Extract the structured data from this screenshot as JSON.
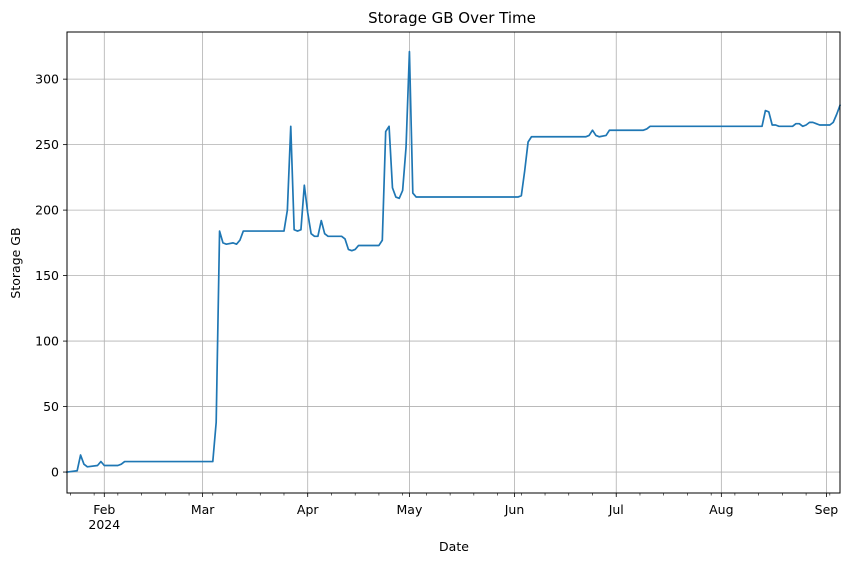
{
  "chart_data": {
    "type": "line",
    "title": "Storage GB Over Time",
    "xlabel": "Date",
    "ylabel": "Storage GB",
    "x_axis": {
      "type": "date",
      "range": [
        "2024-01-21",
        "2024-09-05"
      ],
      "major_ticks": [
        {
          "date": "2024-02-01",
          "label": "Feb",
          "sublabel": "2024"
        },
        {
          "date": "2024-03-01",
          "label": "Mar"
        },
        {
          "date": "2024-04-01",
          "label": "Apr"
        },
        {
          "date": "2024-05-01",
          "label": "May"
        },
        {
          "date": "2024-06-01",
          "label": "Jun"
        },
        {
          "date": "2024-07-01",
          "label": "Jul"
        },
        {
          "date": "2024-08-01",
          "label": "Aug"
        },
        {
          "date": "2024-09-01",
          "label": "Sep"
        }
      ],
      "minor_ticks": "weekly"
    },
    "y_axis": {
      "range": [
        -16,
        336
      ],
      "ticks": [
        0,
        50,
        100,
        150,
        200,
        250,
        300
      ]
    },
    "grid": true,
    "legend": "none",
    "series": [
      {
        "color": "#1f77b4",
        "points": [
          [
            "2024-01-21",
            0
          ],
          [
            "2024-01-24",
            1
          ],
          [
            "2024-01-25",
            13
          ],
          [
            "2024-01-26",
            6
          ],
          [
            "2024-01-27",
            4
          ],
          [
            "2024-01-30",
            5
          ],
          [
            "2024-01-31",
            8
          ],
          [
            "2024-02-01",
            5
          ],
          [
            "2024-02-05",
            5
          ],
          [
            "2024-02-06",
            6
          ],
          [
            "2024-02-07",
            8
          ],
          [
            "2024-02-08",
            8
          ],
          [
            "2024-03-04",
            8
          ],
          [
            "2024-03-05",
            38
          ],
          [
            "2024-03-06",
            184
          ],
          [
            "2024-03-07",
            175
          ],
          [
            "2024-03-08",
            174
          ],
          [
            "2024-03-10",
            175
          ],
          [
            "2024-03-11",
            174
          ],
          [
            "2024-03-12",
            177
          ],
          [
            "2024-03-13",
            184
          ],
          [
            "2024-03-25",
            184
          ],
          [
            "2024-03-26",
            200
          ],
          [
            "2024-03-27",
            264
          ],
          [
            "2024-03-28",
            185
          ],
          [
            "2024-03-29",
            184
          ],
          [
            "2024-03-30",
            185
          ],
          [
            "2024-03-31",
            219
          ],
          [
            "2024-04-01",
            198
          ],
          [
            "2024-04-02",
            182
          ],
          [
            "2024-04-03",
            180
          ],
          [
            "2024-04-04",
            180
          ],
          [
            "2024-04-05",
            192
          ],
          [
            "2024-04-06",
            182
          ],
          [
            "2024-04-07",
            180
          ],
          [
            "2024-04-11",
            180
          ],
          [
            "2024-04-12",
            178
          ],
          [
            "2024-04-13",
            170
          ],
          [
            "2024-04-14",
            169
          ],
          [
            "2024-04-15",
            170
          ],
          [
            "2024-04-16",
            173
          ],
          [
            "2024-04-22",
            173
          ],
          [
            "2024-04-23",
            177
          ],
          [
            "2024-04-24",
            260
          ],
          [
            "2024-04-25",
            264
          ],
          [
            "2024-04-26",
            217
          ],
          [
            "2024-04-27",
            210
          ],
          [
            "2024-04-28",
            209
          ],
          [
            "2024-04-29",
            215
          ],
          [
            "2024-04-30",
            248
          ],
          [
            "2024-05-01",
            321
          ],
          [
            "2024-05-02",
            213
          ],
          [
            "2024-05-03",
            210
          ],
          [
            "2024-06-02",
            210
          ],
          [
            "2024-06-03",
            211
          ],
          [
            "2024-06-04",
            230
          ],
          [
            "2024-06-05",
            252
          ],
          [
            "2024-06-06",
            256
          ],
          [
            "2024-06-22",
            256
          ],
          [
            "2024-06-23",
            257
          ],
          [
            "2024-06-24",
            261
          ],
          [
            "2024-06-25",
            257
          ],
          [
            "2024-06-26",
            256
          ],
          [
            "2024-06-28",
            257
          ],
          [
            "2024-06-29",
            261
          ],
          [
            "2024-07-01",
            261
          ],
          [
            "2024-07-09",
            261
          ],
          [
            "2024-07-10",
            262
          ],
          [
            "2024-07-11",
            264
          ],
          [
            "2024-08-12",
            264
          ],
          [
            "2024-08-13",
            264
          ],
          [
            "2024-08-14",
            276
          ],
          [
            "2024-08-15",
            275
          ],
          [
            "2024-08-16",
            265
          ],
          [
            "2024-08-17",
            265
          ],
          [
            "2024-08-18",
            264
          ],
          [
            "2024-08-22",
            264
          ],
          [
            "2024-08-23",
            266
          ],
          [
            "2024-08-24",
            266
          ],
          [
            "2024-08-25",
            264
          ],
          [
            "2024-08-26",
            265
          ],
          [
            "2024-08-27",
            267
          ],
          [
            "2024-08-28",
            267
          ],
          [
            "2024-08-29",
            266
          ],
          [
            "2024-08-30",
            265
          ],
          [
            "2024-09-02",
            265
          ],
          [
            "2024-09-03",
            267
          ],
          [
            "2024-09-04",
            273
          ],
          [
            "2024-09-05",
            280
          ]
        ]
      }
    ]
  }
}
